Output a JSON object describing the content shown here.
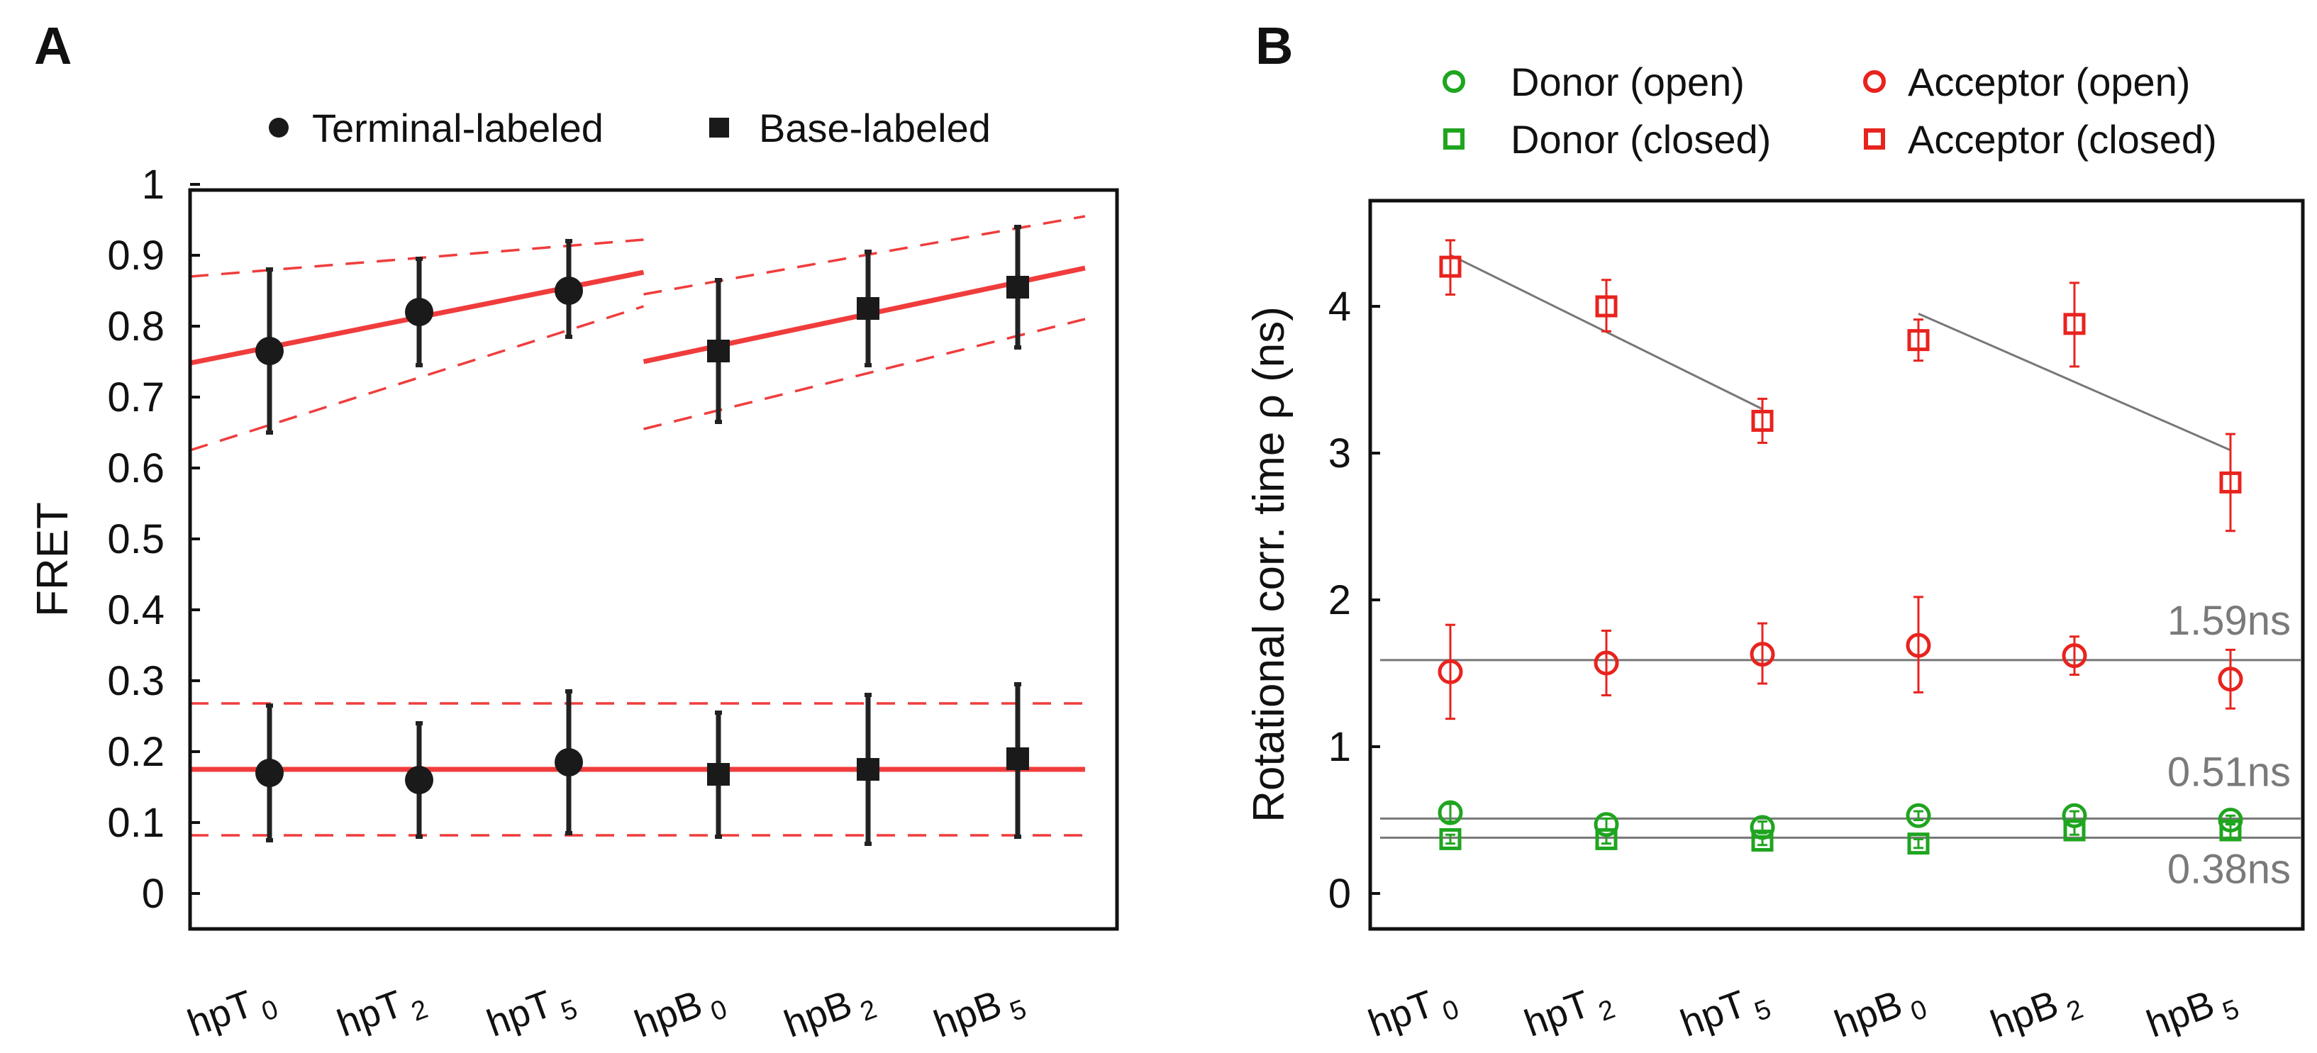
{
  "chart_data": [
    {
      "panel": "A",
      "type": "scatter",
      "ylabel": "FRET",
      "xlabel": "",
      "ylim": [
        0,
        1
      ],
      "yticks": [
        "0",
        "0.1",
        "0.2",
        "0.3",
        "0.4",
        "0.5",
        "0.6",
        "0.7",
        "0.8",
        "0.9",
        "1"
      ],
      "categories": [
        {
          "base": "hpT",
          "sub": "0"
        },
        {
          "base": "hpT",
          "sub": "2"
        },
        {
          "base": "hpT",
          "sub": "5"
        },
        {
          "base": "hpB",
          "sub": "0"
        },
        {
          "base": "hpB",
          "sub": "2"
        },
        {
          "base": "hpB",
          "sub": "5"
        }
      ],
      "legend": [
        {
          "label": "Terminal-labeled",
          "marker": "circle"
        },
        {
          "label": "Base-labeled",
          "marker": "square"
        }
      ],
      "series": [
        {
          "name": "Terminal-labeled high",
          "marker": "circle",
          "x": [
            0,
            1,
            2
          ],
          "values": [
            0.765,
            0.82,
            0.85
          ],
          "err_low": [
            0.65,
            0.745,
            0.785
          ],
          "err_high": [
            0.88,
            0.895,
            0.92
          ]
        },
        {
          "name": "Base-labeled high",
          "marker": "square",
          "x": [
            3,
            4,
            5
          ],
          "values": [
            0.765,
            0.825,
            0.855
          ],
          "err_low": [
            0.665,
            0.745,
            0.77
          ],
          "err_high": [
            0.865,
            0.905,
            0.94
          ]
        },
        {
          "name": "Terminal-labeled low",
          "marker": "circle",
          "x": [
            0,
            1,
            2
          ],
          "values": [
            0.17,
            0.16,
            0.185
          ],
          "err_low": [
            0.075,
            0.08,
            0.085
          ],
          "err_high": [
            0.265,
            0.24,
            0.285
          ]
        },
        {
          "name": "Base-labeled low",
          "marker": "square",
          "x": [
            3,
            4,
            5
          ],
          "values": [
            0.168,
            0.175,
            0.19
          ],
          "err_low": [
            0.08,
            0.07,
            0.08
          ],
          "err_high": [
            0.255,
            0.28,
            0.295
          ]
        }
      ],
      "fit_lines": [
        {
          "style": "solid",
          "x": [
            -0.7,
            2.5
          ],
          "y": [
            0.748,
            0.876
          ]
        },
        {
          "style": "solid",
          "x": [
            2.5,
            5.45
          ],
          "y": [
            0.75,
            0.882
          ]
        },
        {
          "style": "dashed",
          "x": [
            -0.7,
            2.5
          ],
          "y": [
            0.87,
            0.922
          ]
        },
        {
          "style": "dashed",
          "x": [
            -0.7,
            2.5
          ],
          "y": [
            0.625,
            0.828
          ]
        },
        {
          "style": "dashed",
          "x": [
            2.5,
            5.45
          ],
          "y": [
            0.845,
            0.955
          ]
        },
        {
          "style": "dashed",
          "x": [
            2.5,
            5.45
          ],
          "y": [
            0.655,
            0.81
          ]
        },
        {
          "style": "solid",
          "x": [
            -0.7,
            5.45
          ],
          "y": [
            0.175,
            0.175
          ]
        },
        {
          "style": "dashed",
          "x": [
            -0.7,
            5.45
          ],
          "y": [
            0.268,
            0.268
          ]
        },
        {
          "style": "dashed",
          "x": [
            -0.7,
            5.45
          ],
          "y": [
            0.082,
            0.082
          ]
        }
      ],
      "fit_color": "#f03c3c",
      "marker_color": "#1a1a1a"
    },
    {
      "panel": "B",
      "type": "scatter",
      "ylabel": "Rotational corr. time ρ (ns)",
      "xlabel": "",
      "ylim": [
        -0.25,
        4.75
      ],
      "yticks": [
        "0",
        "1",
        "2",
        "3",
        "4"
      ],
      "categories": [
        {
          "base": "hpT",
          "sub": "0"
        },
        {
          "base": "hpT",
          "sub": "2"
        },
        {
          "base": "hpT",
          "sub": "5"
        },
        {
          "base": "hpB",
          "sub": "0"
        },
        {
          "base": "hpB",
          "sub": "2"
        },
        {
          "base": "hpB",
          "sub": "5"
        }
      ],
      "legend": [
        {
          "label": "Donor (open)",
          "marker": "circle-open",
          "color": "#1fa51f"
        },
        {
          "label": "Acceptor (open)",
          "marker": "circle-open",
          "color": "#e8231e"
        },
        {
          "label": "Donor (closed)",
          "marker": "square-open",
          "color": "#1fa51f"
        },
        {
          "label": "Acceptor (closed)",
          "marker": "square-open",
          "color": "#e8231e"
        }
      ],
      "series": [
        {
          "name": "Acceptor (closed)",
          "marker": "square-open",
          "color": "#e8231e",
          "x": [
            0,
            1,
            2,
            3,
            4,
            5
          ],
          "values": [
            4.27,
            4.0,
            3.22,
            3.77,
            3.88,
            2.8
          ],
          "err_low": [
            4.08,
            3.83,
            3.07,
            3.63,
            3.59,
            2.47
          ],
          "err_high": [
            4.45,
            4.18,
            3.37,
            3.91,
            4.16,
            3.13
          ]
        },
        {
          "name": "Acceptor (open)",
          "marker": "circle-open",
          "color": "#e8231e",
          "x": [
            0,
            1,
            2,
            3,
            4,
            5
          ],
          "values": [
            1.51,
            1.57,
            1.63,
            1.69,
            1.62,
            1.46
          ],
          "err_low": [
            1.19,
            1.35,
            1.43,
            1.37,
            1.49,
            1.26
          ],
          "err_high": [
            1.83,
            1.79,
            1.84,
            2.02,
            1.75,
            1.66
          ]
        },
        {
          "name": "Donor (open)",
          "marker": "circle-open",
          "color": "#1fa51f",
          "x": [
            0,
            1,
            2,
            3,
            4,
            5
          ],
          "values": [
            0.55,
            0.47,
            0.45,
            0.53,
            0.53,
            0.5
          ],
          "err_low": [
            0.49,
            0.43,
            0.41,
            0.5,
            0.5,
            0.47
          ],
          "err_high": [
            0.61,
            0.51,
            0.49,
            0.56,
            0.56,
            0.53
          ]
        },
        {
          "name": "Donor (closed)",
          "marker": "square-open",
          "color": "#1fa51f",
          "x": [
            0,
            1,
            2,
            3,
            4,
            5
          ],
          "values": [
            0.37,
            0.37,
            0.36,
            0.34,
            0.43,
            0.43
          ],
          "err_low": [
            0.34,
            0.34,
            0.33,
            0.31,
            0.4,
            0.38
          ],
          "err_high": [
            0.4,
            0.4,
            0.39,
            0.37,
            0.46,
            0.48
          ]
        }
      ],
      "fit_lines": [
        {
          "x": [
            0,
            2
          ],
          "y": [
            4.35,
            3.3
          ]
        },
        {
          "x": [
            3,
            5
          ],
          "y": [
            3.95,
            3.02
          ]
        },
        {
          "x": [
            -0.45,
            5.45
          ],
          "y": [
            1.59,
            1.59
          ]
        },
        {
          "x": [
            -0.45,
            5.45
          ],
          "y": [
            0.51,
            0.51
          ]
        },
        {
          "x": [
            -0.45,
            5.45
          ],
          "y": [
            0.38,
            0.38
          ]
        }
      ],
      "fit_color": "#777777",
      "annotations": [
        {
          "text": "1.59ns",
          "y": 1.59
        },
        {
          "text": "0.51ns",
          "y": 0.51
        },
        {
          "text": "0.38ns",
          "y": 0.38
        }
      ]
    }
  ],
  "panels": {
    "a_label": "A",
    "b_label": "B"
  }
}
